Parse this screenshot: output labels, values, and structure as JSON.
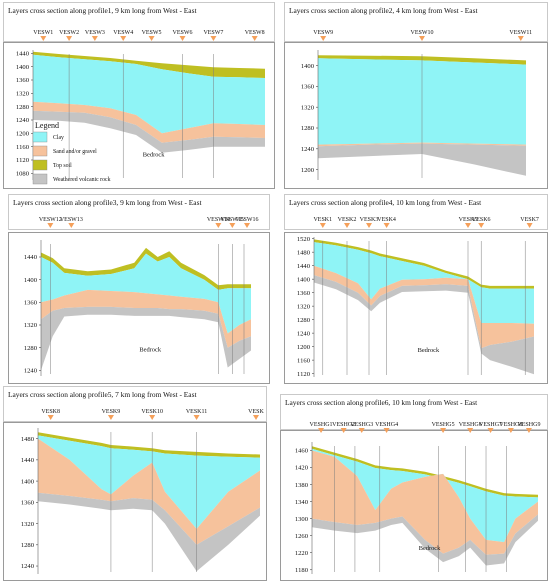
{
  "colors": {
    "clay": "#8ff4f6",
    "sand": "#f6c29c",
    "topsoil": "#bfbf22",
    "weathered": "#c4c4c4",
    "marker": "#f5a05a"
  },
  "legend": {
    "title": "Legend",
    "items": [
      {
        "label": "Clay",
        "color": "#8ff4f6"
      },
      {
        "label": "Sand and/or gravel",
        "color": "#f6c29c"
      },
      {
        "label": "Top soil",
        "color": "#bfbf22"
      },
      {
        "label": "Weathered volcanic rock",
        "color": "#c4c4c4"
      }
    ]
  },
  "chart_data": [
    {
      "type": "area",
      "title": "Layers cross section along profile1, 9 km long from West - East",
      "bedrock_label": "Bedrock",
      "ylim": [
        1060,
        1450
      ],
      "yticks": [
        1080,
        1120,
        1160,
        1200,
        1240,
        1280,
        1320,
        1360,
        1400,
        1440
      ],
      "vertical_lines": [
        1.4,
        3.5,
        5.8,
        7.0
      ],
      "stations": [
        {
          "name": "VESW1",
          "x": 0.4
        },
        {
          "name": "VESW2",
          "x": 1.4
        },
        {
          "name": "VESW3",
          "x": 2.4
        },
        {
          "name": "VESW4",
          "x": 3.5
        },
        {
          "name": "VESW5",
          "x": 4.6
        },
        {
          "name": "VESW6",
          "x": 5.8
        },
        {
          "name": "VESW7",
          "x": 7.0
        },
        {
          "name": "VESW8",
          "x": 8.6
        }
      ],
      "layers": {
        "x": [
          0,
          1,
          2,
          3,
          4,
          5,
          6,
          7,
          8,
          9
        ],
        "topsoil": [
          1445,
          1438,
          1432,
          1426,
          1418,
          1410,
          1404,
          1398,
          1396,
          1394
        ],
        "clay": [
          1436,
          1428,
          1422,
          1416,
          1408,
          1392,
          1380,
          1370,
          1368,
          1366
        ],
        "sand": [
          1295,
          1290,
          1285,
          1275,
          1255,
          1200,
          1215,
          1230,
          1228,
          1225
        ],
        "weathered": [
          1268,
          1265,
          1262,
          1248,
          1225,
          1172,
          1180,
          1190,
          1188,
          1186
        ],
        "bedrock": [
          1240,
          1238,
          1232,
          1215,
          1195,
          1142,
          1150,
          1160,
          1160,
          1160
        ]
      }
    },
    {
      "type": "area",
      "title": "Layers cross section along profile2, 4 km long from West - East",
      "ylim": [
        1180,
        1430
      ],
      "yticks": [
        1200,
        1240,
        1280,
        1320,
        1360,
        1400
      ],
      "vertical_lines": [
        2.0
      ],
      "stations": [
        {
          "name": "VESW9",
          "x": 0.1
        },
        {
          "name": "VESW10",
          "x": 2.0
        },
        {
          "name": "VESW11",
          "x": 3.9
        }
      ],
      "layers": {
        "x": [
          0,
          1,
          2,
          3,
          4
        ],
        "topsoil": [
          1420,
          1419,
          1418,
          1414,
          1410
        ],
        "clay": [
          1414,
          1412,
          1410,
          1406,
          1402
        ],
        "sand": [
          1248,
          1250,
          1252,
          1250,
          1248
        ],
        "weathered": [
          1245,
          1248,
          1250,
          1248,
          1246
        ],
        "bedrock": [
          1222,
          1226,
          1230,
          1210,
          1188
        ]
      }
    },
    {
      "type": "area",
      "title": "Layers cross section along profile3, 9 km long from West - East",
      "bedrock_label": "Bedrock",
      "ylim": [
        1230,
        1470
      ],
      "yticks": [
        1240,
        1280,
        1320,
        1360,
        1400,
        1440
      ],
      "vertical_lines": [
        0.4,
        7.6,
        8.2,
        8.7
      ],
      "stations": [
        {
          "name": "VESW12",
          "x": 0.4
        },
        {
          "name": "VESW13",
          "x": 1.3
        },
        {
          "name": "VESW14",
          "x": 7.6
        },
        {
          "name": "VESW15",
          "x": 8.2
        },
        {
          "name": "VESW16",
          "x": 9.0
        }
      ],
      "layers": {
        "x": [
          0,
          0.5,
          1,
          2,
          3,
          4,
          4.5,
          5,
          5.5,
          6,
          7,
          7.6,
          8,
          8.5,
          9
        ],
        "topsoil": [
          1448,
          1438,
          1420,
          1415,
          1418,
          1430,
          1456,
          1440,
          1450,
          1430,
          1408,
          1390,
          1392,
          1392,
          1392
        ],
        "clay": [
          1440,
          1430,
          1412,
          1407,
          1410,
          1420,
          1446,
          1432,
          1440,
          1420,
          1400,
          1382,
          1385,
          1385,
          1385
        ],
        "sand": [
          1360,
          1365,
          1372,
          1382,
          1380,
          1378,
          1376,
          1374,
          1372,
          1370,
          1366,
          1360,
          1305,
          1320,
          1330
        ],
        "weathered": [
          1330,
          1345,
          1350,
          1352,
          1352,
          1350,
          1350,
          1350,
          1348,
          1348,
          1345,
          1340,
          1280,
          1292,
          1300
        ],
        "bedrock": [
          1240,
          1300,
          1335,
          1338,
          1338,
          1336,
          1336,
          1336,
          1336,
          1334,
          1330,
          1325,
          1245,
          1260,
          1275
        ]
      }
    },
    {
      "type": "area",
      "title": "Layers cross section along profile4, 10 km long from West - East",
      "bedrock_label": "Bedrock",
      "ylim": [
        1110,
        1525
      ],
      "yticks": [
        1120,
        1160,
        1200,
        1240,
        1280,
        1320,
        1360,
        1400,
        1440,
        1480,
        1520
      ],
      "vertical_lines": [
        0.4,
        1.5,
        2.5,
        3.3,
        7.0,
        7.6,
        9.6
      ],
      "stations": [
        {
          "name": "VESK1",
          "x": 0.4
        },
        {
          "name": "VESK2",
          "x": 1.5
        },
        {
          "name": "VESK3",
          "x": 2.5
        },
        {
          "name": "VESK4",
          "x": 3.3
        },
        {
          "name": "VESK5",
          "x": 7.0
        },
        {
          "name": "VESK6",
          "x": 7.6
        },
        {
          "name": "VESK7",
          "x": 9.8
        }
      ],
      "layers": {
        "x": [
          0,
          1,
          2,
          2.6,
          3,
          4,
          5,
          6,
          7,
          7.6,
          8,
          9,
          10
        ],
        "topsoil": [
          1518,
          1508,
          1495,
          1485,
          1476,
          1462,
          1448,
          1425,
          1408,
          1384,
          1380,
          1380,
          1380
        ],
        "clay": [
          1510,
          1500,
          1487,
          1477,
          1468,
          1454,
          1440,
          1418,
          1400,
          1376,
          1372,
          1372,
          1372
        ],
        "sand": [
          1440,
          1418,
          1388,
          1340,
          1372,
          1398,
          1400,
          1404,
          1400,
          1270,
          1270,
          1270,
          1268
        ],
        "weathered": [
          1412,
          1392,
          1360,
          1322,
          1350,
          1380,
          1382,
          1385,
          1380,
          1195,
          1205,
          1215,
          1230
        ],
        "bedrock": [
          1390,
          1370,
          1338,
          1305,
          1330,
          1362,
          1364,
          1366,
          1360,
          1180,
          1160,
          1140,
          1118
        ]
      }
    },
    {
      "type": "area",
      "title": "Layers cross section along profile5, 7 km long from West - East",
      "ylim": [
        1225,
        1500
      ],
      "yticks": [
        1240,
        1280,
        1320,
        1360,
        1400,
        1440,
        1480
      ],
      "vertical_lines": [
        2.3,
        3.6,
        5.0
      ],
      "stations": [
        {
          "name": "VESK8",
          "x": 0.4
        },
        {
          "name": "VESK9",
          "x": 2.3
        },
        {
          "name": "VESK10",
          "x": 3.6
        },
        {
          "name": "VESK11",
          "x": 5.0
        },
        {
          "name": "VESK",
          "x": 6.9
        }
      ],
      "layers": {
        "x": [
          0,
          1,
          2,
          2.3,
          3,
          3.6,
          4,
          5,
          6,
          7
        ],
        "topsoil": [
          1492,
          1482,
          1472,
          1468,
          1465,
          1462,
          1458,
          1455,
          1452,
          1450
        ],
        "clay": [
          1486,
          1476,
          1466,
          1462,
          1459,
          1456,
          1452,
          1448,
          1446,
          1444
        ],
        "sand": [
          1480,
          1440,
          1385,
          1375,
          1410,
          1435,
          1380,
          1310,
          1380,
          1420
        ],
        "weathered": [
          1378,
          1372,
          1365,
          1362,
          1368,
          1365,
          1345,
          1280,
          1315,
          1350
        ],
        "bedrock": [
          1362,
          1356,
          1348,
          1345,
          1348,
          1345,
          1320,
          1230,
          1280,
          1335
        ]
      }
    },
    {
      "type": "area",
      "title": "Layers cross section along profile6, 10 km long from West - East",
      "bedrock_label": "Bedrock",
      "ylim": [
        1170,
        1480
      ],
      "yticks": [
        1180,
        1220,
        1260,
        1300,
        1340,
        1380,
        1420,
        1460
      ],
      "vertical_lines": [
        1.0,
        1.9,
        3.0,
        5.6,
        6.8,
        7.7,
        8.6
      ],
      "stations": [
        {
          "name": "VESHG1",
          "x": 0.4
        },
        {
          "name": "VESHG2",
          "x": 1.4
        },
        {
          "name": "VESHG3",
          "x": 2.2
        },
        {
          "name": "VESHG4",
          "x": 3.3
        },
        {
          "name": "VESHG5",
          "x": 5.8
        },
        {
          "name": "VESHG6",
          "x": 7.0
        },
        {
          "name": "VESHG7",
          "x": 7.9
        },
        {
          "name": "VESHG8",
          "x": 8.8
        },
        {
          "name": "VESHG9",
          "x": 9.6
        }
      ],
      "layers": {
        "x": [
          0,
          1,
          2,
          2.8,
          3.5,
          4,
          5,
          5.8,
          6.5,
          7,
          7.7,
          8.5,
          9,
          10
        ],
        "topsoil": [
          1470,
          1455,
          1440,
          1425,
          1420,
          1418,
          1410,
          1400,
          1390,
          1382,
          1370,
          1360,
          1358,
          1356
        ],
        "clay": [
          1464,
          1449,
          1434,
          1419,
          1414,
          1412,
          1404,
          1394,
          1384,
          1376,
          1364,
          1354,
          1352,
          1350
        ],
        "sand": [
          1460,
          1445,
          1400,
          1320,
          1370,
          1385,
          1398,
          1405,
          1350,
          1300,
          1250,
          1245,
          1300,
          1340
        ],
        "weathered": [
          1300,
          1292,
          1285,
          1290,
          1300,
          1305,
          1250,
          1218,
          1232,
          1250,
          1215,
          1218,
          1265,
          1310
        ],
        "bedrock": [
          1280,
          1272,
          1266,
          1272,
          1285,
          1290,
          1230,
          1198,
          1212,
          1232,
          1190,
          1195,
          1245,
          1295
        ]
      }
    }
  ]
}
